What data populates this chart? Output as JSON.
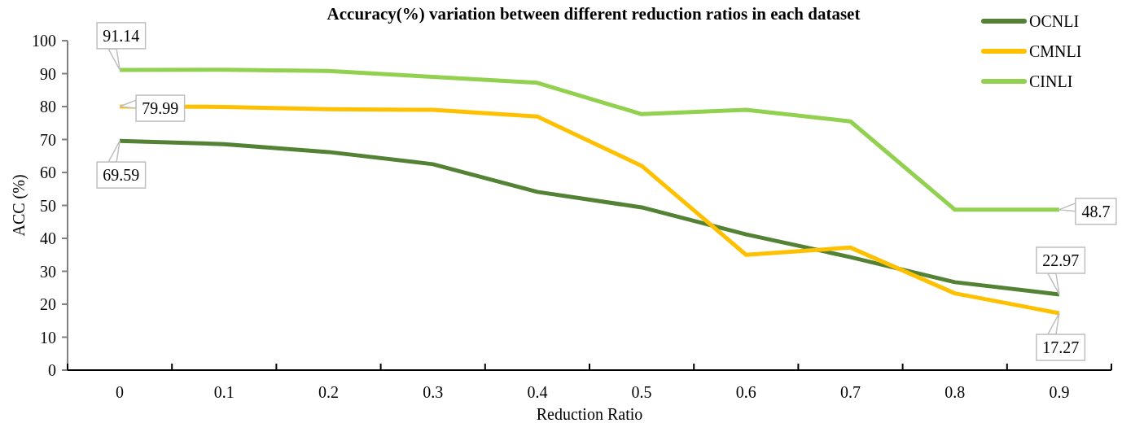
{
  "chart_data": {
    "type": "line",
    "title": "Accuracy(%) variation between different reduction ratios in each dataset",
    "xlabel": "Reduction Ratio",
    "ylabel": "ACC (%)",
    "categories": [
      "0",
      "0.1",
      "0.2",
      "0.3",
      "0.4",
      "0.5",
      "0.6",
      "0.7",
      "0.8",
      "0.9"
    ],
    "series": [
      {
        "name": "OCNLI",
        "color": "#548235",
        "values": [
          69.59,
          68.6,
          66.2,
          62.5,
          54.1,
          49.4,
          41.2,
          34.3,
          26.7,
          22.97
        ],
        "value_labels": [
          "69.59",
          null,
          null,
          null,
          null,
          null,
          null,
          null,
          null,
          "22.97"
        ]
      },
      {
        "name": "CMNLI",
        "color": "#ffc000",
        "values": [
          79.99,
          79.9,
          79.2,
          79.0,
          77.0,
          62.0,
          35.0,
          37.2,
          23.3,
          17.27
        ],
        "value_labels": [
          "79.99",
          null,
          null,
          null,
          null,
          null,
          null,
          null,
          null,
          "17.27"
        ]
      },
      {
        "name": "CINLI",
        "color": "#92d050",
        "values": [
          91.14,
          91.2,
          90.8,
          89.0,
          87.2,
          77.7,
          79.0,
          75.5,
          48.7,
          48.7
        ],
        "value_labels": [
          "91.14",
          null,
          null,
          null,
          null,
          null,
          null,
          null,
          null,
          "48.7"
        ]
      }
    ],
    "ylim": [
      0,
      100
    ],
    "yticks": [
      0,
      10,
      20,
      30,
      40,
      50,
      60,
      70,
      80,
      90,
      100
    ],
    "grid": false,
    "legend": "top right",
    "marker": "none",
    "line_style": "solid"
  }
}
